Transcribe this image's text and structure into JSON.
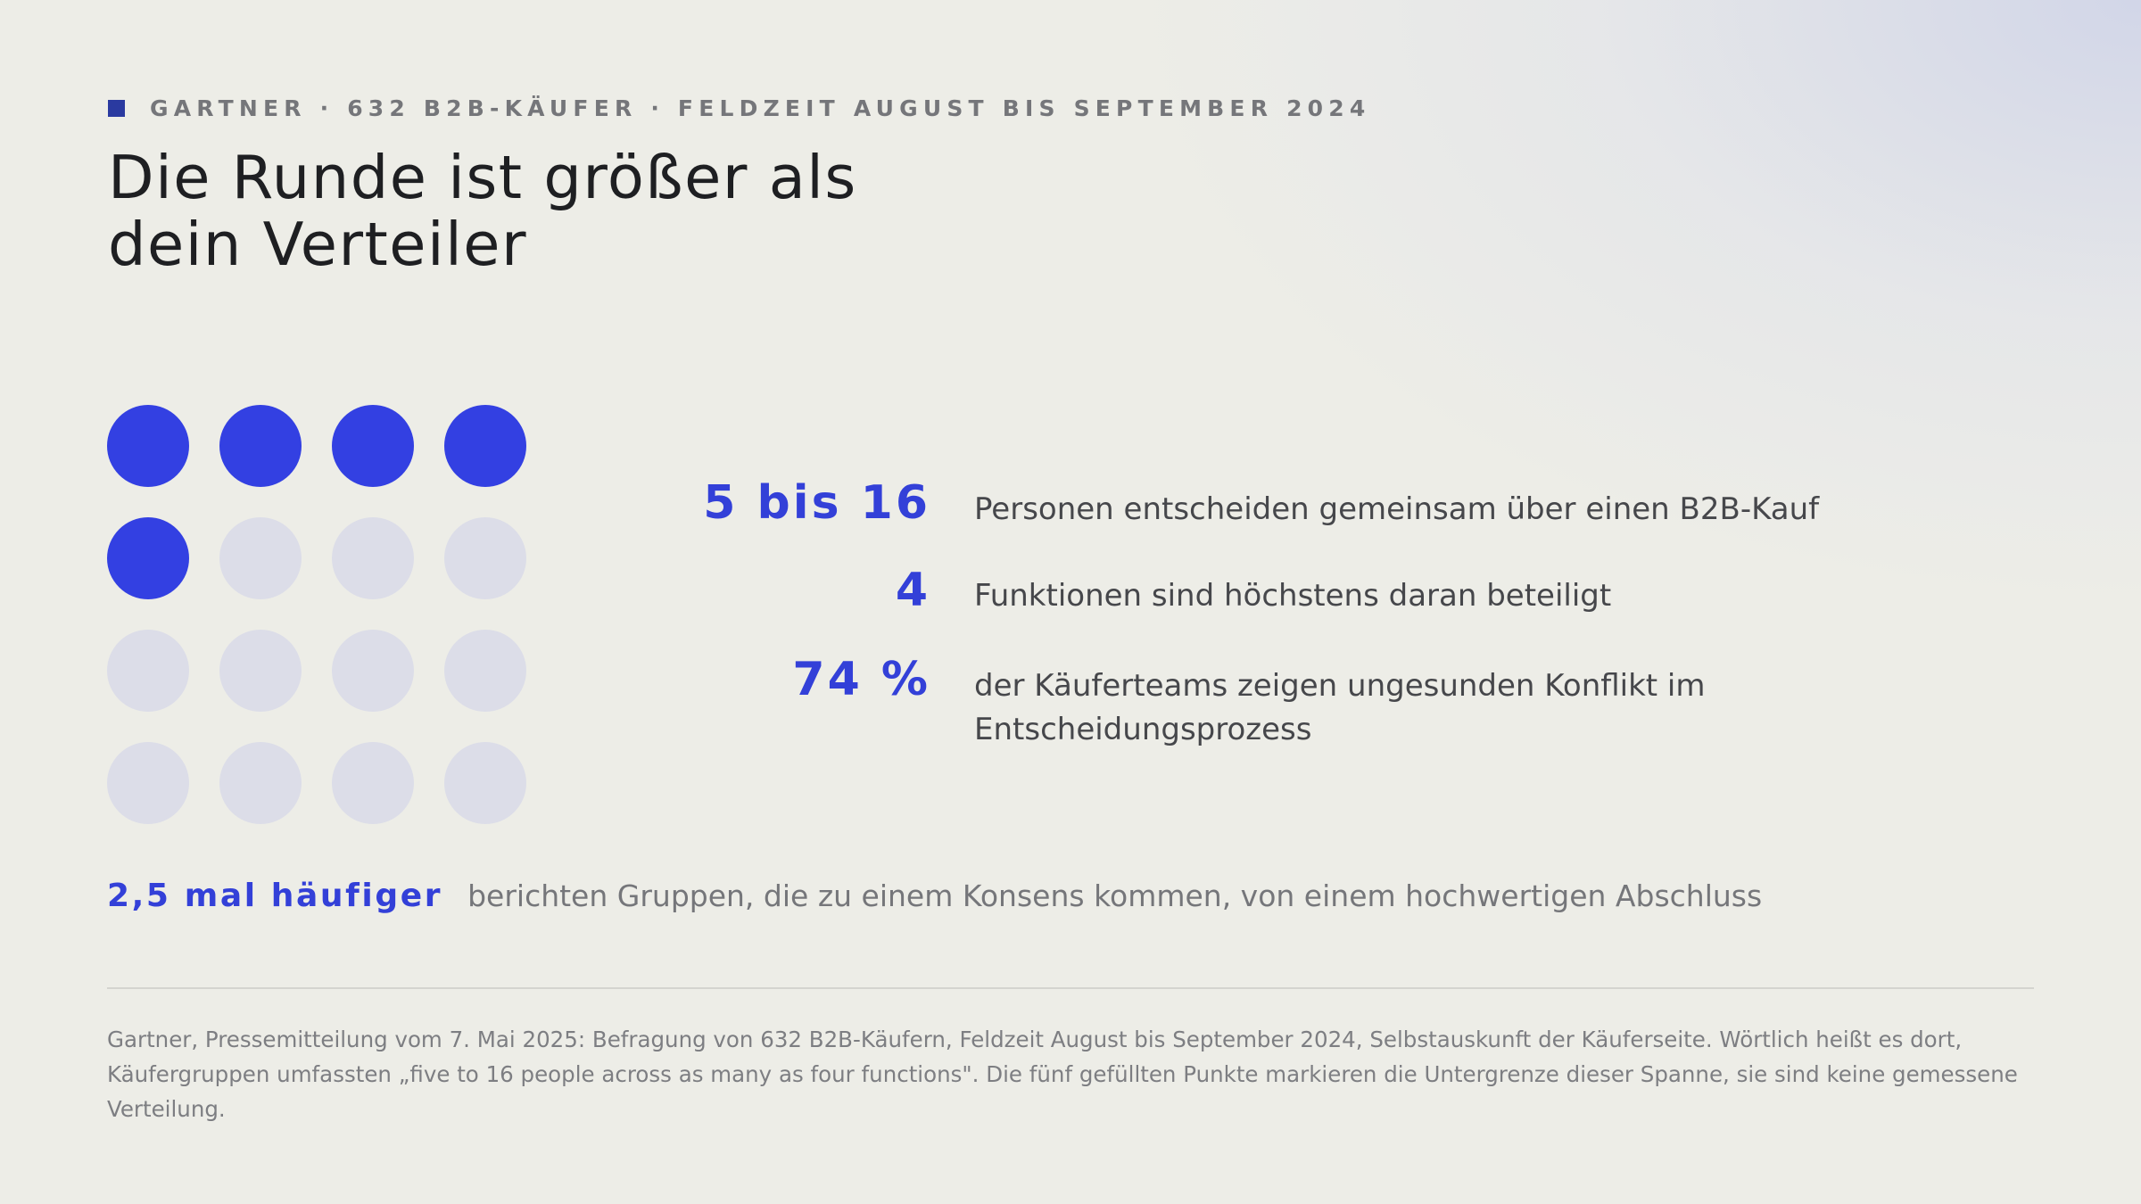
{
  "eyebrow": {
    "text": "GARTNER · 632 B2B-KÄUFER · FELDZEIT AUGUST BIS SEPTEMBER 2024"
  },
  "title": {
    "line1": "Die Runde ist größer als",
    "line2": "dein Verteiler"
  },
  "dot_grid": {
    "total": 16,
    "filled": 5,
    "columns": 4,
    "filled_color": "#3340e2",
    "empty_color": "#dcdde8"
  },
  "stats": [
    {
      "value": "5 bis 16",
      "label": "Personen entscheiden gemeinsam über einen B2B-Kauf"
    },
    {
      "value": "4",
      "label": "Funktionen sind höchstens daran beteiligt"
    },
    {
      "value": "74 %",
      "label_line1": "der Käuferteams zeigen ungesunden Konflikt im",
      "label_line2": "Entscheidungsprozess"
    }
  ],
  "highlight": {
    "value": "2,5 mal häufiger",
    "text": "berichten Gruppen, die zu einem Konsens kommen, von einem hochwertigen Abschluss"
  },
  "footnote": {
    "line1": "Gartner, Pressemitteilung vom 7. Mai 2025: Befragung von 632 B2B-Käufern, Feldzeit August bis September 2024, Selbstauskunft der Käuferseite. Wörtlich heißt es dort,",
    "line2": "Käufergruppen umfassten „five to 16 people across as many as four functions\". Die fünf gefüllten Punkte markieren die Untergrenze dieser Spanne, sie sind keine gemessene",
    "line3": "Verteilung."
  },
  "colors": {
    "accent": "#3340d8",
    "eyebrow_square": "#2a3aa0",
    "background": "#edede7"
  }
}
